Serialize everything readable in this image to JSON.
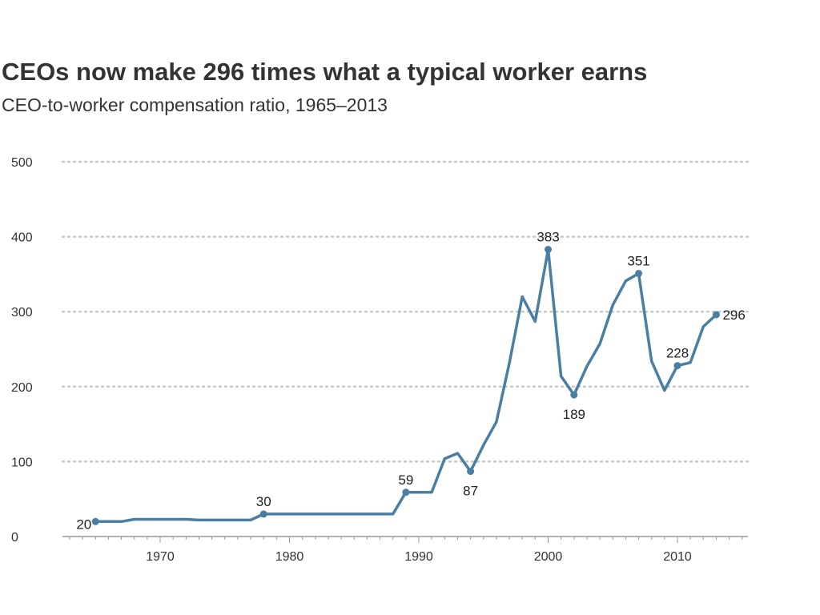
{
  "title": "CEOs now make 296 times what a typical worker earns",
  "subtitle": "CEO-to-worker compensation ratio, 1965–2013",
  "colors": {
    "line": "#4a7fa3",
    "grid": "#c8c8c8",
    "axis": "#999999",
    "text": "#333333"
  },
  "chart_data": {
    "type": "line",
    "title": "CEOs now make 296 times what a typical worker earns",
    "subtitle": "CEO-to-worker compensation ratio, 1965–2013",
    "xlabel": "",
    "ylabel": "",
    "xlim": [
      1962,
      2015
    ],
    "ylim": [
      0,
      500
    ],
    "x_ticks": [
      1970,
      1980,
      1990,
      2000,
      2010
    ],
    "y_ticks": [
      0,
      100,
      200,
      300,
      400,
      500
    ],
    "grid": "horizontal dotted",
    "series": [
      {
        "x": [
          1965,
          1966,
          1967,
          1968,
          1969,
          1970,
          1971,
          1972,
          1973,
          1974,
          1975,
          1976,
          1977,
          1978,
          1979,
          1980,
          1981,
          1982,
          1983,
          1984,
          1985,
          1986,
          1987,
          1988,
          1989,
          1990,
          1991,
          1992,
          1993,
          1994,
          1995,
          1996,
          1997,
          1998,
          1999,
          2000,
          2001,
          2002,
          2003,
          2004,
          2005,
          2006,
          2007,
          2008,
          2009,
          2010,
          2011,
          2012,
          2013
        ],
        "y": [
          20,
          20,
          20,
          23,
          23,
          23,
          23,
          23,
          22,
          22,
          22,
          22,
          22,
          30,
          30,
          30,
          30,
          30,
          30,
          30,
          30,
          30,
          30,
          30,
          59,
          59,
          59,
          104,
          111,
          87,
          122,
          153,
          231,
          320,
          287,
          383,
          214,
          189,
          227,
          257,
          309,
          341,
          351,
          234,
          195,
          228,
          232,
          280,
          296
        ]
      }
    ],
    "annotations": [
      {
        "x": 1965,
        "y": 20,
        "text": "20",
        "pos": "left"
      },
      {
        "x": 1978,
        "y": 30,
        "text": "30",
        "pos": "above"
      },
      {
        "x": 1989,
        "y": 59,
        "text": "59",
        "pos": "above"
      },
      {
        "x": 1994,
        "y": 87,
        "text": "87",
        "pos": "below"
      },
      {
        "x": 2000,
        "y": 383,
        "text": "383",
        "pos": "above"
      },
      {
        "x": 2002,
        "y": 189,
        "text": "189",
        "pos": "below"
      },
      {
        "x": 2007,
        "y": 351,
        "text": "351",
        "pos": "above"
      },
      {
        "x": 2010,
        "y": 228,
        "text": "228",
        "pos": "above"
      },
      {
        "x": 2013,
        "y": 296,
        "text": "296",
        "pos": "right"
      }
    ]
  }
}
